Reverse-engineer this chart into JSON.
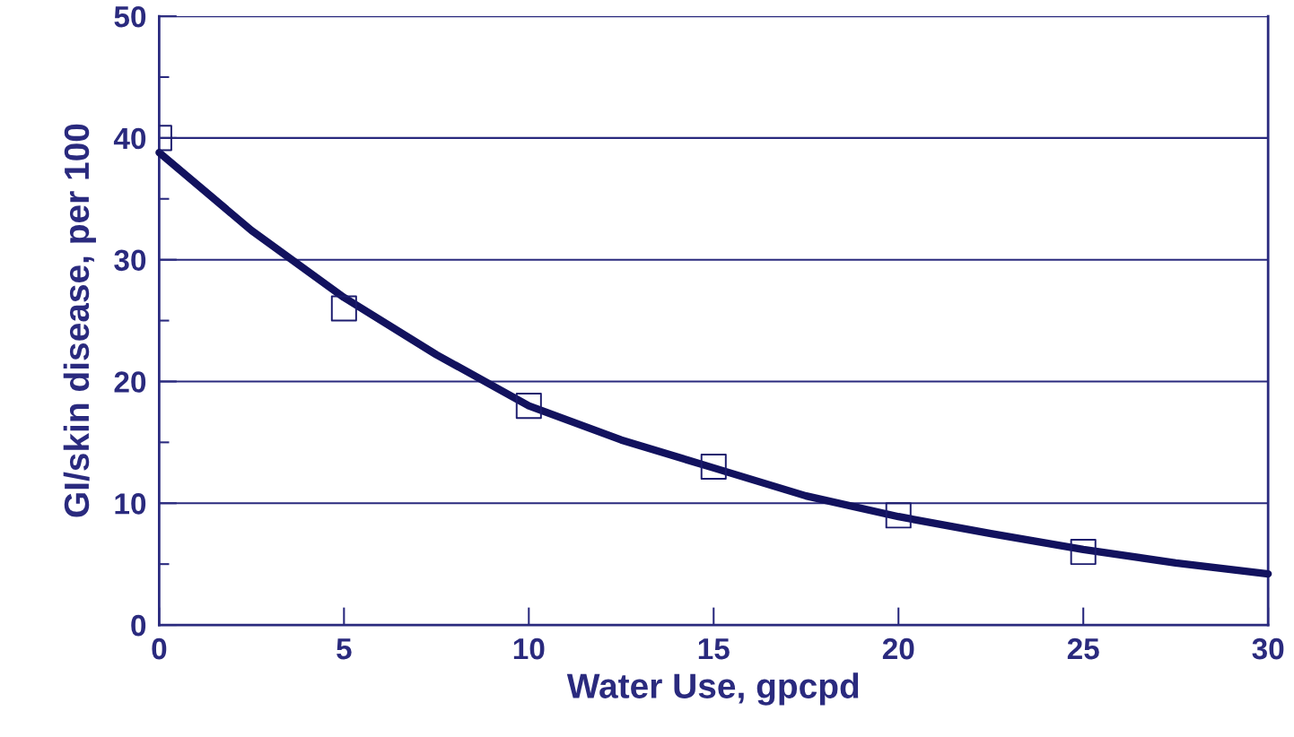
{
  "chart_data": {
    "type": "scatter",
    "xlabel": "Water Use, gpcpd",
    "ylabel": "GI/skin disease, per 100",
    "xlim": [
      0,
      30
    ],
    "ylim": [
      0,
      50
    ],
    "xticks": [
      0,
      5,
      10,
      15,
      20,
      25,
      30
    ],
    "yticks": [
      0,
      {
        "value": 5,
        "label": null
      },
      10,
      {
        "value": 15,
        "label": null
      },
      20,
      {
        "value": 25,
        "label": null
      },
      30,
      {
        "value": 35,
        "label": null
      },
      40,
      {
        "value": 45,
        "label": null
      },
      50
    ],
    "grid": "y",
    "legend": false,
    "series": [
      {
        "color": "#1c1c6e",
        "marker": "square",
        "x": [
          0,
          5,
          10,
          15,
          20,
          25
        ],
        "values": [
          40,
          26,
          18,
          13,
          9,
          6
        ]
      },
      {
        "type": "line",
        "color": "#12125e",
        "marker": "none",
        "line_style": "solid",
        "x": [
          0,
          2.5,
          5,
          7.5,
          10,
          12.5,
          15,
          17.5,
          20,
          22.5,
          25,
          27.5,
          30
        ],
        "values": [
          38.8,
          32.4,
          26.9,
          22.2,
          18.0,
          15.2,
          12.9,
          10.6,
          8.9,
          7.5,
          6.2,
          5.1,
          4.2
        ]
      }
    ]
  }
}
